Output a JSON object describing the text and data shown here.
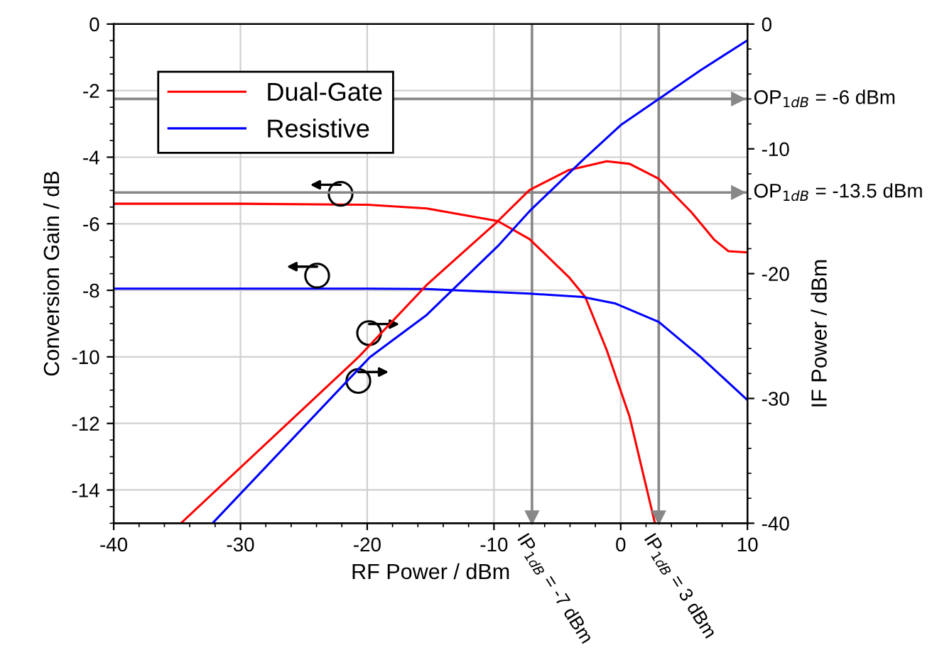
{
  "chart_data": {
    "type": "line",
    "xlabel": "RF Power / dBm",
    "ylabel": "Conversion Gain / dB",
    "y2label": "IF Power / dBm",
    "xlim": [
      -40,
      10
    ],
    "xticks": [
      -40,
      -30,
      -20,
      -10,
      0,
      10
    ],
    "ylim": [
      -15,
      0
    ],
    "yticks": [
      -14,
      -12,
      -10,
      -8,
      -6,
      -4,
      -2,
      0
    ],
    "y2lim": [
      -40,
      0
    ],
    "y2ticks": [
      -40,
      -30,
      -20,
      -10,
      0
    ],
    "grid": true,
    "legend": "top left",
    "marker": "none",
    "line_style": "solid",
    "series": [
      {
        "name": "Dual-Gate",
        "color": "#ff0000",
        "x": [
          -40,
          -30,
          -20,
          -15.3,
          -9.7,
          -7.2,
          -4.1,
          -2.8,
          -1.1,
          0.7,
          2.7
        ],
        "values": [
          -5.4,
          -5.4,
          -5.43,
          -5.54,
          -5.92,
          -6.46,
          -7.6,
          -8.2,
          -9.8,
          -11.8,
          -15
        ]
      },
      {
        "name": "Resistive",
        "color": "#0000ff",
        "x": [
          -40,
          -30,
          -20,
          -15.3,
          -7.2,
          -3,
          -0.4,
          3,
          6.3,
          10
        ],
        "values": [
          -7.95,
          -7.95,
          -7.95,
          -7.96,
          -8.1,
          -8.2,
          -8.4,
          -8.95,
          -10,
          -11.3
        ]
      },
      {
        "color": "#ff0000",
        "axis": "y2",
        "x": [
          -34.7,
          -20.7,
          -15.3,
          -9.7,
          -7.2,
          -4.1,
          -1.1,
          0.7,
          3,
          5.6,
          7.4,
          8.5,
          10
        ],
        "values": [
          -40,
          -26.7,
          -20.9,
          -15.8,
          -13.3,
          -11.7,
          -11,
          -11.2,
          -12.4,
          -15.1,
          -17.3,
          -18.2,
          -18.3
        ]
      },
      {
        "color": "#0000ff",
        "axis": "y2",
        "x": [
          -32.2,
          -19.8,
          -15.3,
          -9.7,
          -7.2,
          -3,
          0,
          3,
          6.3,
          10
        ],
        "values": [
          -40,
          -26.7,
          -23.3,
          -17.8,
          -15,
          -10.9,
          -8.1,
          -6,
          -3.7,
          -1.3
        ]
      }
    ],
    "ref_lines": [
      {
        "axis": "y2",
        "value": -6,
        "label": "OP$_{1dB}$ = -6 dBm",
        "color": "#888888"
      },
      {
        "axis": "y2",
        "value": -13.5,
        "label": "OP$_{1dB}$ = -13.5 dBm",
        "color": "#888888"
      },
      {
        "axis": "x",
        "value": -7,
        "label": "IP$_{1dB}$ = -7 dBm",
        "color": "#888888"
      },
      {
        "axis": "x",
        "value": 3,
        "label": "IP$_{1dB}$ = 3 dBm",
        "color": "#888888"
      }
    ]
  }
}
